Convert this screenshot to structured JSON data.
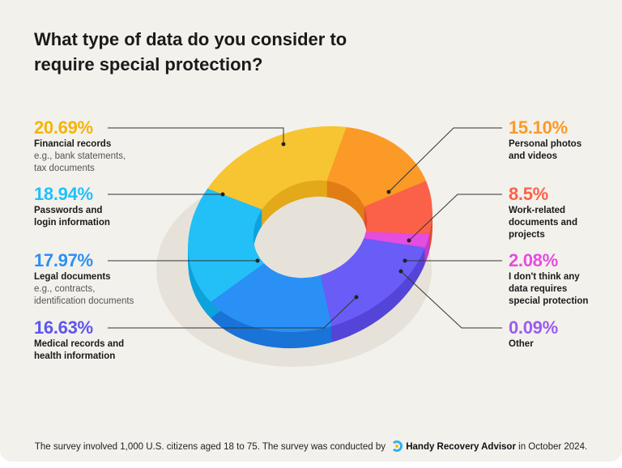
{
  "chart_data": {
    "type": "pie",
    "title": "What type of data do you consider to require special protection?",
    "donut": true,
    "series": [
      {
        "name": "Financial records",
        "sub": "e.g., bank statements, tax documents",
        "value": 20.69,
        "label": "20.69%",
        "color": "#f7c531",
        "side_color": "#e3a91a"
      },
      {
        "name": "Personal photos and videos",
        "sub": "",
        "value": 15.1,
        "label": "15.10%",
        "color": "#fb9a26",
        "side_color": "#e07d14"
      },
      {
        "name": "Work-related documents and projects",
        "sub": "",
        "value": 8.5,
        "label": "8.5%",
        "color": "#fb6148",
        "side_color": "#e04a33"
      },
      {
        "name": "I don't think any data requires special protection",
        "sub": "",
        "value": 2.08,
        "label": "2.08%",
        "color": "#e54ce0",
        "side_color": "#c938c4"
      },
      {
        "name": "Other",
        "sub": "",
        "value": 0.09,
        "label": "0.09%",
        "color": "#9b5cf0",
        "side_color": "#8447d8"
      },
      {
        "name": "Medical records and health information",
        "sub": "",
        "value": 16.63,
        "label": "16.63%",
        "color": "#6a5cf6",
        "side_color": "#5445d8"
      },
      {
        "name": "Legal documents",
        "sub": "e.g., contracts, identification documents",
        "value": 17.97,
        "label": "17.97%",
        "color": "#2b90f5",
        "side_color": "#1a73d6"
      },
      {
        "name": "Passwords and login information",
        "sub": "",
        "value": 18.94,
        "label": "18.94%",
        "color": "#23c0f8",
        "side_color": "#0ea2dc"
      }
    ]
  },
  "labels": {
    "financial": {
      "pct": "20.69%",
      "name": "Financial records",
      "sub1": "e.g., bank statements,",
      "sub2": "tax documents",
      "color": "#f5b40c"
    },
    "passwords": {
      "pct": "18.94%",
      "name1": "Passwords and",
      "name2": "login information",
      "color": "#23c0f8"
    },
    "legal": {
      "pct": "17.97%",
      "name": "Legal documents",
      "sub1": "e.g., contracts,",
      "sub2": "identification documents",
      "color": "#2b90f5"
    },
    "medical": {
      "pct": "16.63%",
      "name1": "Medical records and",
      "name2": "health information",
      "color": "#5d55f0"
    },
    "photos": {
      "pct": "15.10%",
      "name1": "Personal photos",
      "name2": "and videos",
      "color": "#fb9a26"
    },
    "work": {
      "pct": "8.5%",
      "name1": "Work-related",
      "name2": "documents and",
      "name3": "projects",
      "color": "#fb6148"
    },
    "none": {
      "pct": "2.08%",
      "name1": "I don't think any",
      "name2": "data requires",
      "name3": "special protection",
      "color": "#e54ce0"
    },
    "other": {
      "pct": "0.09%",
      "name1": "Other",
      "color": "#9b5cf0"
    }
  },
  "footer": {
    "text1": "The survey involved 1,000 U.S. citizens aged 18 to 75. The survey was conducted by",
    "brand": "Handy Recovery Advisor",
    "text2": "in October 2024."
  }
}
